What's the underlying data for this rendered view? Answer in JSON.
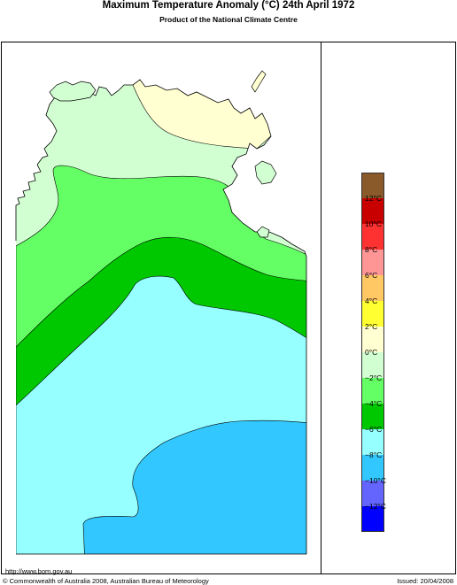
{
  "header": {
    "title": "Maximum Temperature Anomaly (°C)  24th April 1972",
    "subtitle": "Product of the National Climate Centre"
  },
  "legend": {
    "bins": [
      {
        "label": "",
        "color": "#8B5A2B"
      },
      {
        "label": "12°C",
        "color": "#C80000"
      },
      {
        "label": "10°C",
        "color": "#FF3232"
      },
      {
        "label": "8°C",
        "color": "#FF9696"
      },
      {
        "label": "6°C",
        "color": "#FFC864"
      },
      {
        "label": "4°C",
        "color": "#FFFF32"
      },
      {
        "label": "2°C",
        "color": "#FFFFD2"
      },
      {
        "label": "0°C",
        "color": "#D2FFD2"
      },
      {
        "label": "−2°C",
        "color": "#64FF64"
      },
      {
        "label": "−4°C",
        "color": "#00C800"
      },
      {
        "label": "−6°C",
        "color": "#96FFFF"
      },
      {
        "label": "−8°C",
        "color": "#32C8FF"
      },
      {
        "label": "−10°C",
        "color": "#6464FF"
      },
      {
        "label": "−12°C",
        "color": "#0000FF"
      }
    ]
  },
  "map": {
    "region": "Northern Territory, Australia",
    "sea_color": "#ffffff",
    "coast_color": "#000000",
    "contour_zones": [
      "0°C",
      "−2°C",
      "−4°C",
      "−6°C",
      "−8°C",
      "−10°C"
    ]
  },
  "footer": {
    "url": "http://www.bom.gov.au",
    "copyright": "© Commonwealth of Australia 2008, Australian Bureau of Meteorology",
    "issued": "Issued: 20/04/2008"
  }
}
